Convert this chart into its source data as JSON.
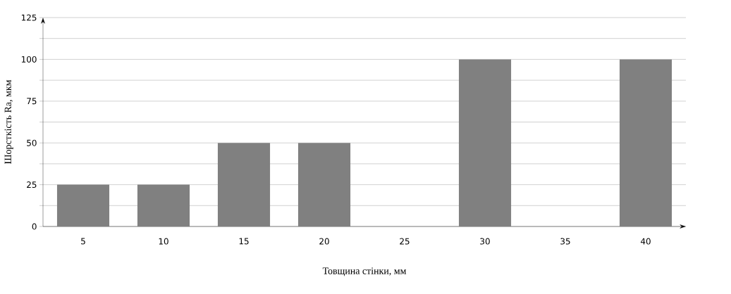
{
  "chart_data": {
    "type": "bar",
    "xlabel": "Товщина стінки, мм",
    "ylabel": "Шорсткість Ra, мкм",
    "categories": [
      "5",
      "10",
      "15",
      "20",
      "25",
      "30",
      "35",
      "40"
    ],
    "values": [
      25,
      25,
      50,
      50,
      0,
      100,
      0,
      100
    ],
    "color": "#808080",
    "ylim": [
      0,
      125
    ],
    "yticks": [
      0,
      {
        "value": 12.5,
        "label": null
      },
      25,
      {
        "value": 37.5,
        "label": null
      },
      50,
      {
        "value": 62.5,
        "label": null
      },
      75,
      {
        "value": 87.5,
        "label": null
      },
      100,
      {
        "value": 112.5,
        "label": null
      },
      125
    ],
    "grid": "y"
  }
}
